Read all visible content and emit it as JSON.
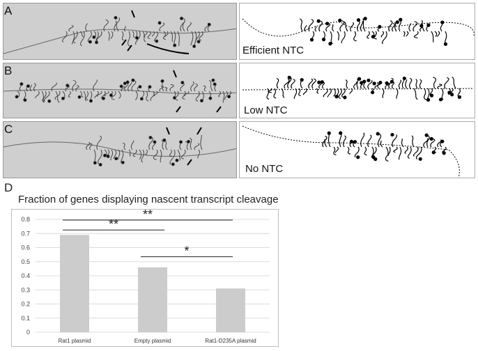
{
  "panels": [
    {
      "label": "A",
      "caption": "Efficient NTC"
    },
    {
      "label": "B",
      "caption": "Low NTC"
    },
    {
      "label": "C",
      "caption": "No NTC"
    }
  ],
  "section_label": "D",
  "chart_data": {
    "type": "bar",
    "title": "Fraction of genes displaying nascent transcript cleavage",
    "categories": [
      "Rat1 plasmid",
      "Empty plasmid",
      "Rat1-D235A plasmid"
    ],
    "values": [
      0.69,
      0.46,
      0.31
    ],
    "ylim": [
      0,
      0.8
    ],
    "yticks": [
      "0",
      "0.1",
      "0.2",
      "0.3",
      "0.4",
      "0.5",
      "0.6",
      "0.7",
      "0.8"
    ],
    "grid": true,
    "bar_color": "#cccccc",
    "significance": [
      {
        "from": 0,
        "to": 1,
        "label": "**"
      },
      {
        "from": 0,
        "to": 2,
        "label": "**"
      },
      {
        "from": 1,
        "to": 2,
        "label": "*"
      }
    ]
  }
}
